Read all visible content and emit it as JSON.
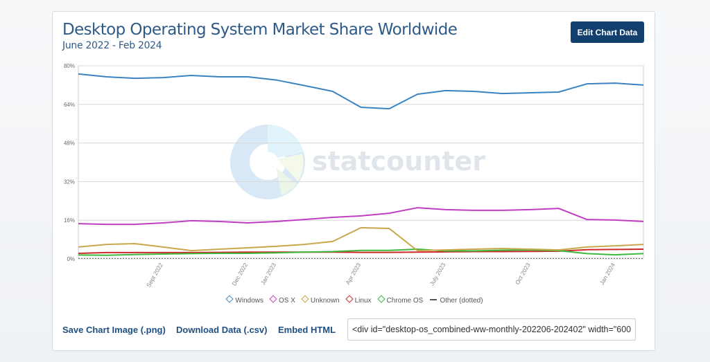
{
  "header": {
    "title": "Desktop Operating System Market Share Worldwide",
    "subtitle": "June 2022 - Feb 2024",
    "edit_button": "Edit Chart Data"
  },
  "watermark": "statcounter",
  "footer": {
    "save_image": "Save Chart Image (.png)",
    "download_data": "Download Data (.csv)",
    "embed_label": "Embed HTML",
    "embed_value": "<div id=\"desktop-os_combined-ww-monthly-202206-202402\" width=\"600"
  },
  "chart_data": {
    "type": "line",
    "title": "Desktop Operating System Market Share Worldwide",
    "subtitle": "June 2022 - Feb 2024",
    "x": [
      "2022-06",
      "2022-07",
      "2022-08",
      "2022-09",
      "2022-10",
      "2022-11",
      "2022-12",
      "2023-01",
      "2023-02",
      "2023-03",
      "2023-04",
      "2023-05",
      "2023-06",
      "2023-07",
      "2023-08",
      "2023-09",
      "2023-10",
      "2023-11",
      "2023-12",
      "2024-01",
      "2024-02"
    ],
    "x_tick_labels": [
      {
        "index": 3,
        "label": "Sept 2022"
      },
      {
        "index": 6,
        "label": "Dec 2022"
      },
      {
        "index": 7,
        "label": "Jan 2023"
      },
      {
        "index": 10,
        "label": "Apr 2023"
      },
      {
        "index": 13,
        "label": "July 2023"
      },
      {
        "index": 16,
        "label": "Oct 2023"
      },
      {
        "index": 19,
        "label": "Jan 2024"
      }
    ],
    "y_ticks": [
      "0%",
      "16%",
      "32%",
      "48%",
      "64%",
      "80%"
    ],
    "ylim": [
      0,
      80
    ],
    "grid": true,
    "legend_position": "bottom",
    "series": [
      {
        "name": "Windows",
        "color": "#3b83c0",
        "values": [
          76.6,
          75.4,
          74.8,
          75.1,
          76.0,
          75.4,
          75.4,
          74.1,
          71.8,
          69.4,
          62.8,
          62.2,
          68.2,
          69.7,
          69.4,
          68.5,
          68.8,
          69.1,
          72.5,
          72.8,
          72.0
        ]
      },
      {
        "name": "OS X",
        "color": "#c13ec1",
        "values": [
          14.6,
          14.3,
          14.3,
          14.9,
          15.8,
          15.5,
          14.9,
          15.5,
          16.3,
          17.2,
          17.8,
          18.9,
          21.2,
          20.4,
          20.1,
          20.1,
          20.4,
          20.9,
          16.3,
          16.1,
          15.5
        ]
      },
      {
        "name": "Unknown",
        "color": "#c8a84a",
        "values": [
          4.9,
          6.0,
          6.3,
          4.9,
          3.4,
          4.0,
          4.6,
          5.2,
          6.0,
          7.2,
          12.9,
          12.6,
          3.4,
          3.7,
          4.0,
          4.3,
          4.0,
          3.7,
          4.9,
          5.4,
          6.0
        ]
      },
      {
        "name": "Linux",
        "color": "#cc2a2a",
        "values": [
          2.3,
          2.6,
          2.6,
          2.6,
          2.6,
          2.7,
          2.8,
          2.8,
          2.8,
          2.8,
          2.7,
          2.7,
          2.8,
          2.9,
          3.0,
          3.0,
          3.1,
          3.2,
          3.8,
          3.9,
          4.0
        ]
      },
      {
        "name": "Chrome OS",
        "color": "#3cb83c",
        "values": [
          1.6,
          1.5,
          1.8,
          2.0,
          2.2,
          2.3,
          2.3,
          2.5,
          2.8,
          3.0,
          3.5,
          3.5,
          4.0,
          3.3,
          3.3,
          3.6,
          3.7,
          3.4,
          2.2,
          1.7,
          2.2
        ]
      },
      {
        "name": "Other (dotted)",
        "color": "#555555",
        "dotted": true,
        "values": [
          0.2,
          0.2,
          0.2,
          0.2,
          0.2,
          0.2,
          0.2,
          0.2,
          0.2,
          0.2,
          0.2,
          0.2,
          0.2,
          0.2,
          0.2,
          0.2,
          0.2,
          0.2,
          0.2,
          0.2,
          0.2
        ]
      }
    ]
  }
}
